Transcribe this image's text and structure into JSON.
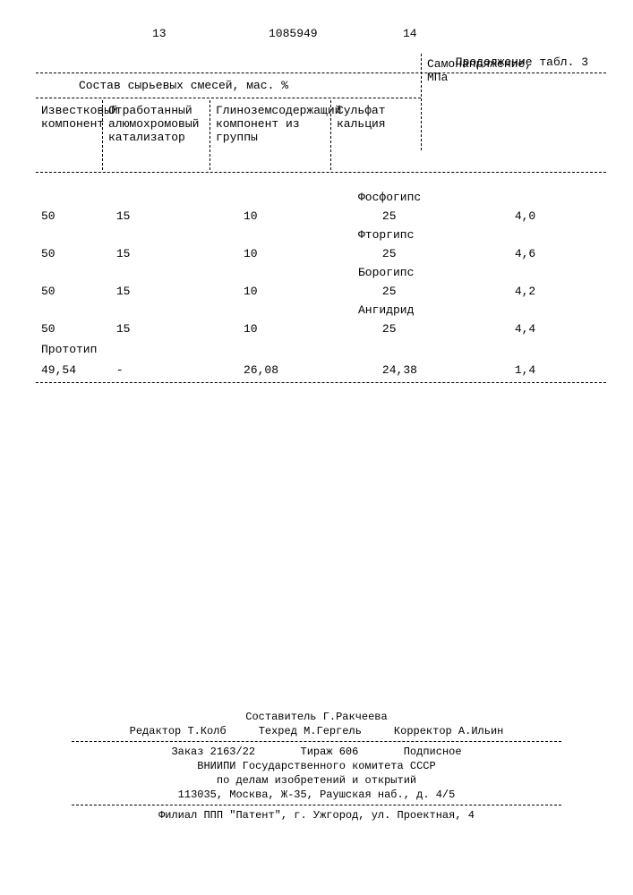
{
  "header": {
    "page_left": "13",
    "doc_number": "1085949",
    "page_right": "14",
    "table_caption": "Продолжение табл. 3"
  },
  "table": {
    "group_header": "Состав сырьевых смесей, мас. %",
    "columns": {
      "c0": "Известковый компонент",
      "c1": "Отработанный алюмохромовый катализатор",
      "c2": "Глиноземсодержащий компонент из группы",
      "c3": "Сульфат кальция",
      "c4": "Самонапряжение, МПа"
    },
    "rows": [
      {
        "label": "Фосфогипс",
        "v0": "50",
        "v1": "15",
        "v2": "10",
        "v3": "25",
        "v4": "4,0"
      },
      {
        "label": "Фторгипс",
        "v0": "50",
        "v1": "15",
        "v2": "10",
        "v3": "25",
        "v4": "4,6"
      },
      {
        "label": "Борогипс",
        "v0": "50",
        "v1": "15",
        "v2": "10",
        "v3": "25",
        "v4": "4,2"
      },
      {
        "label": "Ангидрид",
        "v0": "50",
        "v1": "15",
        "v2": "10",
        "v3": "25",
        "v4": "4,4"
      }
    ],
    "prototype_label": "Прототип",
    "prototype_row": {
      "v0": "49,54",
      "v1": "-",
      "v2": "26,08",
      "v3": "24,38",
      "v4": "1,4"
    }
  },
  "footer": {
    "compiler": "Составитель Г.Ракчеева",
    "editor": "Редактор Т.Колб",
    "tech": "Техред М.Гергель",
    "corrector": "Корректор А.Ильин",
    "order": "Заказ 2163/22",
    "tirage": "Тираж 606",
    "subscript": "Подписное",
    "org1": "ВНИИПИ Государственного комитета СССР",
    "org2": "по делам изобретений и открытий",
    "addr1": "113035, Москва, Ж-35, Раушская наб., д. 4/5",
    "branch": "Филиал ППП \"Патент\", г. Ужгород, ул. Проектная, 4"
  }
}
